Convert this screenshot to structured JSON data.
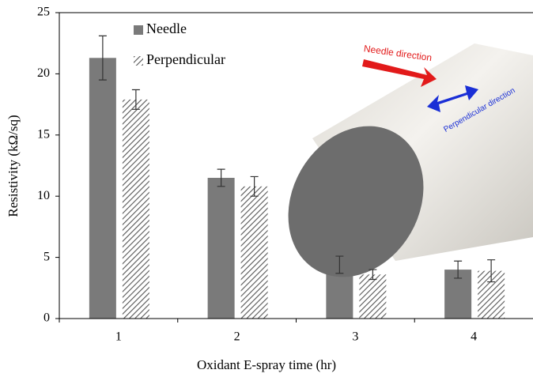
{
  "chart_data": {
    "type": "bar",
    "xlabel": "Oxidant E-spray time (hr)",
    "ylabel": "Resistivity (kΩ/sq)",
    "categories": [
      "1",
      "2",
      "3",
      "4"
    ],
    "series": [
      {
        "name": "Needle",
        "color": "#7a7a7a",
        "values": [
          21.3,
          11.5,
          4.4,
          4.0
        ],
        "errors": [
          1.8,
          0.7,
          0.7,
          0.7
        ]
      },
      {
        "name": "Perpendicular",
        "color": "#555555",
        "hatch": true,
        "values": [
          17.9,
          10.8,
          3.6,
          3.9
        ],
        "errors": [
          0.8,
          0.8,
          0.4,
          0.9
        ]
      }
    ],
    "ylim": [
      0,
      25
    ],
    "yticks": [
      0,
      5,
      10,
      15,
      20,
      25
    ],
    "legend": "top-left",
    "annotations": [
      "Needle direction",
      "Perpendicular direction"
    ]
  }
}
